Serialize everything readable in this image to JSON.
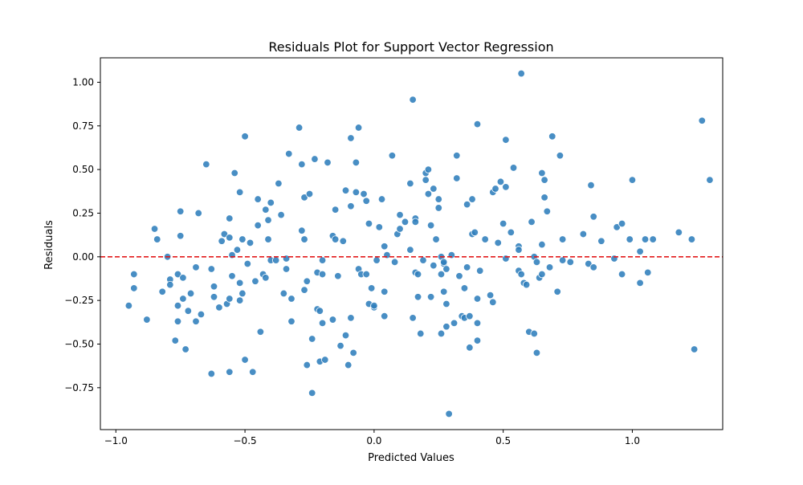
{
  "chart_data": {
    "type": "scatter",
    "title": "Residuals Plot for Support Vector Regression",
    "xlabel": "Predicted Values",
    "ylabel": "Residuals",
    "xlim": [
      -1.06,
      1.35
    ],
    "ylim": [
      -0.99,
      1.14
    ],
    "xticks": [
      -1.0,
      -0.5,
      0.0,
      0.5,
      1.0
    ],
    "xtick_labels": [
      "−1.0",
      "−0.5",
      "0.0",
      "0.5",
      "1.0"
    ],
    "yticks": [
      -0.75,
      -0.5,
      -0.25,
      0.0,
      0.25,
      0.5,
      0.75,
      1.0
    ],
    "ytick_labels": [
      "−0.75",
      "−0.50",
      "−0.25",
      "0.00",
      "0.25",
      "0.50",
      "0.75",
      "1.00"
    ],
    "grid": false,
    "reference_line": {
      "y": 0,
      "style": "dashed",
      "color": "#e31a1c"
    },
    "point_color": "#2f7ebc",
    "points": [
      [
        -0.95,
        -0.28
      ],
      [
        -0.93,
        -0.1
      ],
      [
        -0.93,
        -0.18
      ],
      [
        -0.88,
        -0.36
      ],
      [
        -0.85,
        0.16
      ],
      [
        -0.84,
        0.1
      ],
      [
        -0.82,
        -0.2
      ],
      [
        -0.8,
        0.0
      ],
      [
        -0.79,
        -0.13
      ],
      [
        -0.79,
        -0.16
      ],
      [
        -0.77,
        -0.48
      ],
      [
        -0.76,
        -0.28
      ],
      [
        -0.76,
        -0.1
      ],
      [
        -0.76,
        -0.37
      ],
      [
        -0.75,
        0.12
      ],
      [
        -0.75,
        0.26
      ],
      [
        -0.74,
        -0.24
      ],
      [
        -0.74,
        -0.12
      ],
      [
        -0.73,
        -0.53
      ],
      [
        -0.72,
        -0.31
      ],
      [
        -0.71,
        -0.21
      ],
      [
        -0.69,
        -0.06
      ],
      [
        -0.69,
        -0.37
      ],
      [
        -0.68,
        0.25
      ],
      [
        -0.67,
        -0.33
      ],
      [
        -0.65,
        0.53
      ],
      [
        -0.63,
        -0.07
      ],
      [
        -0.63,
        -0.67
      ],
      [
        -0.62,
        -0.17
      ],
      [
        -0.62,
        -0.23
      ],
      [
        -0.6,
        -0.29
      ],
      [
        -0.59,
        0.09
      ],
      [
        -0.58,
        0.13
      ],
      [
        -0.57,
        -0.27
      ],
      [
        -0.56,
        -0.66
      ],
      [
        -0.56,
        0.22
      ],
      [
        -0.56,
        0.11
      ],
      [
        -0.56,
        -0.24
      ],
      [
        -0.55,
        0.01
      ],
      [
        -0.55,
        -0.11
      ],
      [
        -0.54,
        0.48
      ],
      [
        -0.53,
        0.04
      ],
      [
        -0.52,
        -0.15
      ],
      [
        -0.52,
        0.37
      ],
      [
        -0.52,
        -0.25
      ],
      [
        -0.51,
        0.1
      ],
      [
        -0.51,
        -0.21
      ],
      [
        -0.5,
        -0.59
      ],
      [
        -0.5,
        0.69
      ],
      [
        -0.49,
        -0.04
      ],
      [
        -0.48,
        0.08
      ],
      [
        -0.47,
        -0.66
      ],
      [
        -0.46,
        -0.14
      ],
      [
        -0.45,
        0.33
      ],
      [
        -0.45,
        0.18
      ],
      [
        -0.44,
        -0.43
      ],
      [
        -0.43,
        -0.1
      ],
      [
        -0.42,
        0.27
      ],
      [
        -0.42,
        -0.12
      ],
      [
        -0.41,
        0.1
      ],
      [
        -0.41,
        0.21
      ],
      [
        -0.4,
        0.31
      ],
      [
        -0.4,
        -0.02
      ],
      [
        -0.38,
        -0.02
      ],
      [
        -0.37,
        0.42
      ],
      [
        -0.36,
        0.24
      ],
      [
        -0.35,
        -0.21
      ],
      [
        -0.34,
        -0.07
      ],
      [
        -0.34,
        -0.01
      ],
      [
        -0.33,
        0.59
      ],
      [
        -0.32,
        -0.24
      ],
      [
        -0.32,
        -0.37
      ],
      [
        -0.29,
        0.74
      ],
      [
        -0.28,
        0.53
      ],
      [
        -0.28,
        0.15
      ],
      [
        -0.27,
        0.34
      ],
      [
        -0.27,
        -0.19
      ],
      [
        -0.27,
        0.1
      ],
      [
        -0.26,
        -0.62
      ],
      [
        -0.26,
        -0.14
      ],
      [
        -0.25,
        0.36
      ],
      [
        -0.24,
        -0.78
      ],
      [
        -0.24,
        -0.47
      ],
      [
        -0.23,
        0.56
      ],
      [
        -0.22,
        -0.3
      ],
      [
        -0.22,
        -0.09
      ],
      [
        -0.21,
        -0.6
      ],
      [
        -0.21,
        -0.31
      ],
      [
        -0.2,
        -0.02
      ],
      [
        -0.2,
        -0.1
      ],
      [
        -0.2,
        -0.38
      ],
      [
        -0.19,
        -0.59
      ],
      [
        -0.18,
        0.54
      ],
      [
        -0.16,
        0.12
      ],
      [
        -0.16,
        -0.36
      ],
      [
        -0.15,
        0.1
      ],
      [
        -0.15,
        0.27
      ],
      [
        -0.14,
        -0.11
      ],
      [
        -0.13,
        -0.51
      ],
      [
        -0.12,
        0.09
      ],
      [
        -0.11,
        0.38
      ],
      [
        -0.11,
        -0.45
      ],
      [
        -0.1,
        -0.62
      ],
      [
        -0.09,
        0.68
      ],
      [
        -0.09,
        0.29
      ],
      [
        -0.09,
        -0.35
      ],
      [
        -0.08,
        -0.55
      ],
      [
        -0.07,
        0.54
      ],
      [
        -0.07,
        0.37
      ],
      [
        -0.06,
        0.74
      ],
      [
        -0.06,
        -0.07
      ],
      [
        -0.05,
        -0.1
      ],
      [
        -0.04,
        0.36
      ],
      [
        -0.03,
        -0.1
      ],
      [
        -0.03,
        0.32
      ],
      [
        -0.02,
        0.19
      ],
      [
        -0.02,
        -0.27
      ],
      [
        -0.01,
        -0.18
      ],
      [
        0.0,
        -0.29
      ],
      [
        0.0,
        -0.28
      ],
      [
        0.01,
        -0.02
      ],
      [
        0.02,
        0.17
      ],
      [
        0.03,
        0.33
      ],
      [
        0.04,
        -0.34
      ],
      [
        0.04,
        -0.2
      ],
      [
        0.04,
        0.06
      ],
      [
        0.05,
        0.01
      ],
      [
        0.07,
        0.58
      ],
      [
        0.08,
        -0.03
      ],
      [
        0.09,
        0.13
      ],
      [
        0.1,
        0.24
      ],
      [
        0.1,
        0.16
      ],
      [
        0.12,
        0.2
      ],
      [
        0.14,
        0.42
      ],
      [
        0.14,
        0.04
      ],
      [
        0.15,
        0.9
      ],
      [
        0.15,
        -0.35
      ],
      [
        0.16,
        -0.09
      ],
      [
        0.16,
        0.22
      ],
      [
        0.16,
        0.2
      ],
      [
        0.17,
        -0.1
      ],
      [
        0.17,
        -0.23
      ],
      [
        0.18,
        -0.44
      ],
      [
        0.19,
        -0.02
      ],
      [
        0.2,
        0.48
      ],
      [
        0.2,
        0.44
      ],
      [
        0.21,
        0.5
      ],
      [
        0.21,
        0.36
      ],
      [
        0.22,
        0.18
      ],
      [
        0.22,
        -0.23
      ],
      [
        0.23,
        -0.05
      ],
      [
        0.23,
        0.39
      ],
      [
        0.24,
        0.1
      ],
      [
        0.25,
        0.28
      ],
      [
        0.25,
        0.33
      ],
      [
        0.26,
        -0.44
      ],
      [
        0.26,
        0.0
      ],
      [
        0.26,
        -0.1
      ],
      [
        0.27,
        -0.04
      ],
      [
        0.27,
        -0.03
      ],
      [
        0.27,
        -0.2
      ],
      [
        0.28,
        -0.07
      ],
      [
        0.28,
        -0.27
      ],
      [
        0.28,
        -0.4
      ],
      [
        0.29,
        -0.9
      ],
      [
        0.3,
        0.01
      ],
      [
        0.31,
        -0.38
      ],
      [
        0.32,
        0.58
      ],
      [
        0.32,
        0.45
      ],
      [
        0.33,
        -0.11
      ],
      [
        0.34,
        -0.34
      ],
      [
        0.35,
        -0.35
      ],
      [
        0.35,
        -0.18
      ],
      [
        0.36,
        -0.06
      ],
      [
        0.36,
        0.3
      ],
      [
        0.37,
        -0.34
      ],
      [
        0.37,
        -0.52
      ],
      [
        0.38,
        0.13
      ],
      [
        0.38,
        0.33
      ],
      [
        0.39,
        0.14
      ],
      [
        0.4,
        -0.38
      ],
      [
        0.4,
        -0.48
      ],
      [
        0.4,
        -0.24
      ],
      [
        0.4,
        0.76
      ],
      [
        0.41,
        -0.08
      ],
      [
        0.43,
        0.1
      ],
      [
        0.45,
        -0.22
      ],
      [
        0.46,
        -0.26
      ],
      [
        0.46,
        0.37
      ],
      [
        0.47,
        0.39
      ],
      [
        0.48,
        0.08
      ],
      [
        0.49,
        0.43
      ],
      [
        0.5,
        0.19
      ],
      [
        0.51,
        -0.01
      ],
      [
        0.51,
        0.4
      ],
      [
        0.51,
        0.67
      ],
      [
        0.53,
        0.14
      ],
      [
        0.54,
        0.51
      ],
      [
        0.56,
        -0.08
      ],
      [
        0.56,
        0.06
      ],
      [
        0.56,
        0.04
      ],
      [
        0.57,
        1.05
      ],
      [
        0.57,
        -0.1
      ],
      [
        0.58,
        -0.15
      ],
      [
        0.59,
        -0.16
      ],
      [
        0.6,
        -0.43
      ],
      [
        0.61,
        0.2
      ],
      [
        0.62,
        -0.44
      ],
      [
        0.62,
        0.0
      ],
      [
        0.63,
        -0.03
      ],
      [
        0.63,
        -0.55
      ],
      [
        0.64,
        -0.12
      ],
      [
        0.65,
        0.07
      ],
      [
        0.65,
        0.48
      ],
      [
        0.65,
        -0.1
      ],
      [
        0.66,
        0.34
      ],
      [
        0.66,
        0.44
      ],
      [
        0.67,
        0.26
      ],
      [
        0.68,
        -0.06
      ],
      [
        0.69,
        0.69
      ],
      [
        0.71,
        -0.2
      ],
      [
        0.72,
        0.58
      ],
      [
        0.73,
        0.1
      ],
      [
        0.73,
        -0.02
      ],
      [
        0.76,
        -0.03
      ],
      [
        0.81,
        0.13
      ],
      [
        0.83,
        -0.04
      ],
      [
        0.84,
        0.41
      ],
      [
        0.85,
        0.23
      ],
      [
        0.85,
        -0.06
      ],
      [
        0.88,
        0.09
      ],
      [
        0.93,
        -0.01
      ],
      [
        0.94,
        0.17
      ],
      [
        0.96,
        0.19
      ],
      [
        0.96,
        -0.1
      ],
      [
        0.99,
        0.1
      ],
      [
        1.0,
        0.44
      ],
      [
        1.03,
        -0.15
      ],
      [
        1.03,
        0.03
      ],
      [
        1.05,
        0.1
      ],
      [
        1.06,
        -0.09
      ],
      [
        1.08,
        0.1
      ],
      [
        1.18,
        0.14
      ],
      [
        1.23,
        0.1
      ],
      [
        1.24,
        -0.53
      ],
      [
        1.27,
        0.78
      ],
      [
        1.3,
        0.44
      ]
    ]
  }
}
